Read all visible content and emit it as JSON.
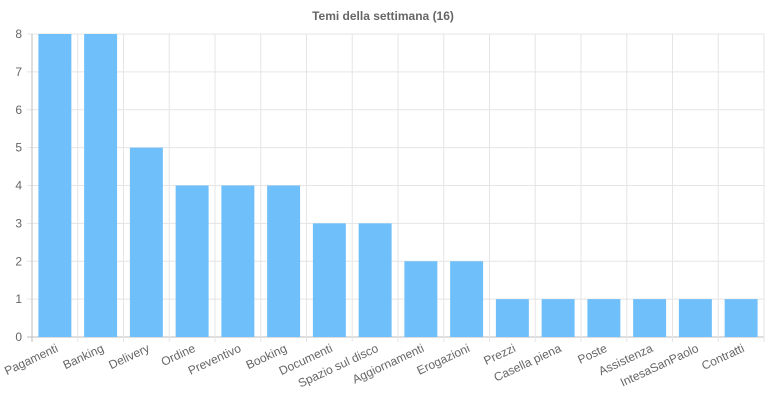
{
  "chart_data": {
    "type": "bar",
    "title": "Temi della settimana (16)",
    "categories": [
      "Pagamenti",
      "Banking",
      "Delivery",
      "Ordine",
      "Preventivo",
      "Booking",
      "Documenti",
      "Spazio sul disco",
      "Aggiornamenti",
      "Erogazioni",
      "Prezzi",
      "Casella piena",
      "Poste",
      "Assistenza",
      "IntesaSanPaolo",
      "Contratti"
    ],
    "values": [
      8,
      8,
      5,
      4,
      4,
      4,
      3,
      3,
      2,
      2,
      1,
      1,
      1,
      1,
      1,
      1
    ],
    "ylim": [
      0,
      8
    ],
    "yticks": [
      0,
      1,
      2,
      3,
      4,
      5,
      6,
      7,
      8
    ],
    "grid": true,
    "bar_color": "#6ebffa",
    "grid_color": "#e5e5e5",
    "axis_color": "#bdbdbd",
    "text_color": "#666666"
  }
}
